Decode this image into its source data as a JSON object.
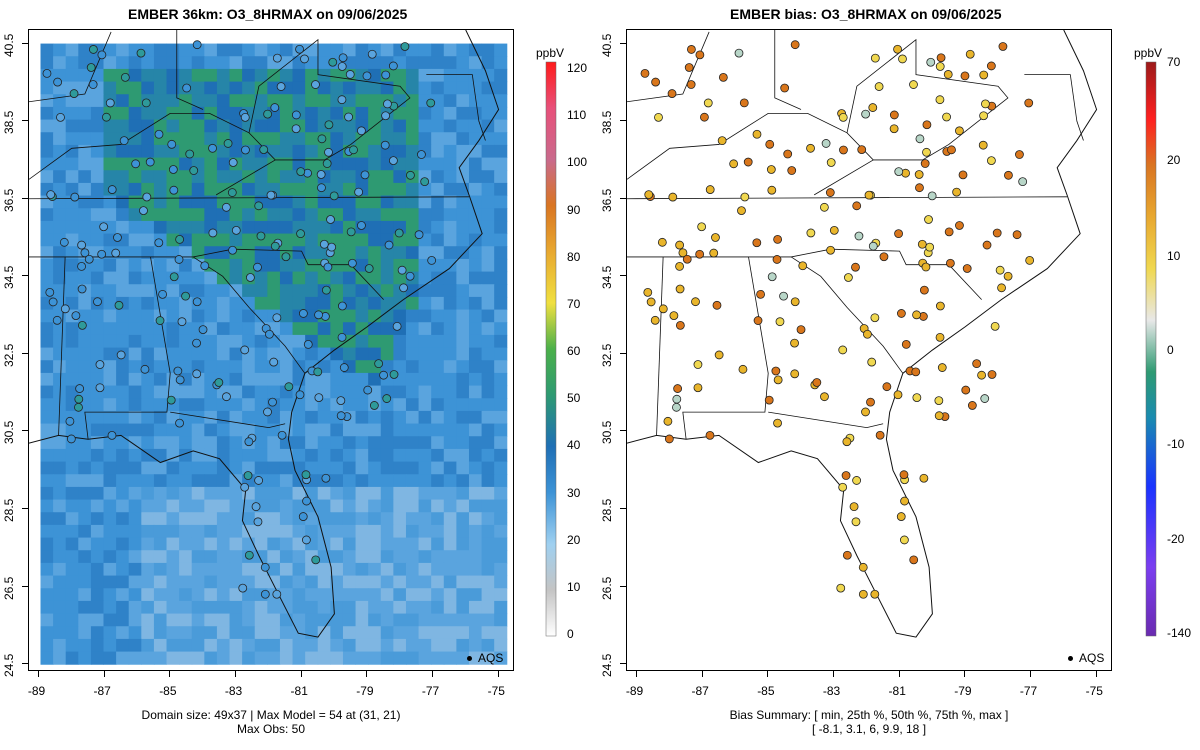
{
  "left": {
    "title": "EMBER 36km: O3_8HRMAX on 09/06/2025",
    "footer_line1": "Domain size: 49x37 | Max Model = 54 at (31, 21)",
    "footer_line2": "Max Obs: 50",
    "legend": "AQS",
    "colorbar_unit": "ppbV",
    "colorbar_ticks": [
      "120",
      "110",
      "100",
      "90",
      "80",
      "70",
      "60",
      "50",
      "40",
      "30",
      "20",
      "10",
      "0"
    ]
  },
  "right": {
    "title": "EMBER bias: O3_8HRMAX on 09/06/2025",
    "footer_line1": "Bias Summary: [ min, 25th %, 50th %, 75th %, max ]",
    "footer_line2": "[ -8.1,   3.1,   6,   9.9,   18 ]",
    "legend": "AQS",
    "colorbar_unit": "ppbV",
    "colorbar_ticks": [
      "70",
      "20",
      "10",
      "0",
      "-10",
      "-20",
      "-140"
    ]
  },
  "x_ticks": [
    "-89",
    "-87",
    "-85",
    "-83",
    "-81",
    "-79",
    "-77",
    "-75"
  ],
  "y_ticks": [
    "40.5",
    "38.5",
    "36.5",
    "34.5",
    "32.5",
    "30.5",
    "28.5",
    "26.5",
    "24.5"
  ],
  "colors": {
    "model_bg": "#3d93d6",
    "model_dark": "#1f6fb5",
    "model_green": "#2e9a72",
    "bias_high": "#d9761b",
    "bias_mid": "#e9b52b",
    "bias_low": "#b8d6c8"
  }
}
